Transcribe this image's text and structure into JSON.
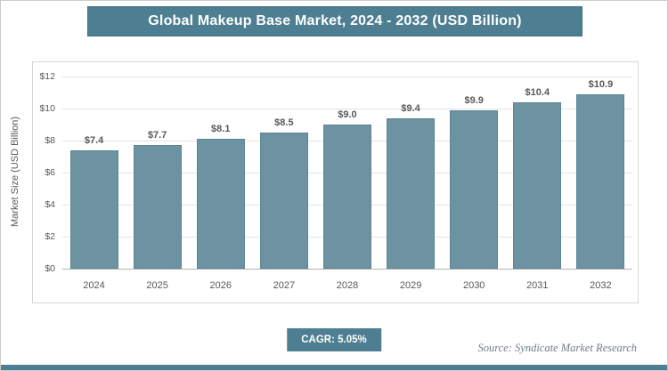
{
  "page": {
    "title": "Global Makeup Base Market, 2024 - 2032 (USD Billion)",
    "cagr_label": "CAGR: 5.05%",
    "source": "Source: Syndicate Market Research"
  },
  "colors": {
    "accent": "#4d7e91",
    "bar_fill": "#6d93a2",
    "bar_border": "#5d8494",
    "label_text": "#595959"
  },
  "chart_data": {
    "type": "bar",
    "title": "Global Makeup Base Market, 2024 - 2032 (USD Billion)",
    "categories": [
      "2024",
      "2025",
      "2026",
      "2027",
      "2028",
      "2029",
      "2030",
      "2031",
      "2032"
    ],
    "values": [
      7.4,
      7.7,
      8.1,
      8.5,
      9.0,
      9.4,
      9.9,
      10.4,
      10.9
    ],
    "labels": [
      "$7.4",
      "$7.7",
      "$8.1",
      "$8.5",
      "$9.0",
      "$9.4",
      "$9.9",
      "$10.4",
      "$10.9"
    ],
    "xlabel": "",
    "ylabel": "Market Size (USD Billion)",
    "ylim": [
      0,
      12
    ],
    "ytick_step": 2,
    "ytick_labels": [
      "$0",
      "$2",
      "$4",
      "$6",
      "$8",
      "$10",
      "$12"
    ],
    "grid": true,
    "legend": "none",
    "cagr": "5.05%"
  }
}
